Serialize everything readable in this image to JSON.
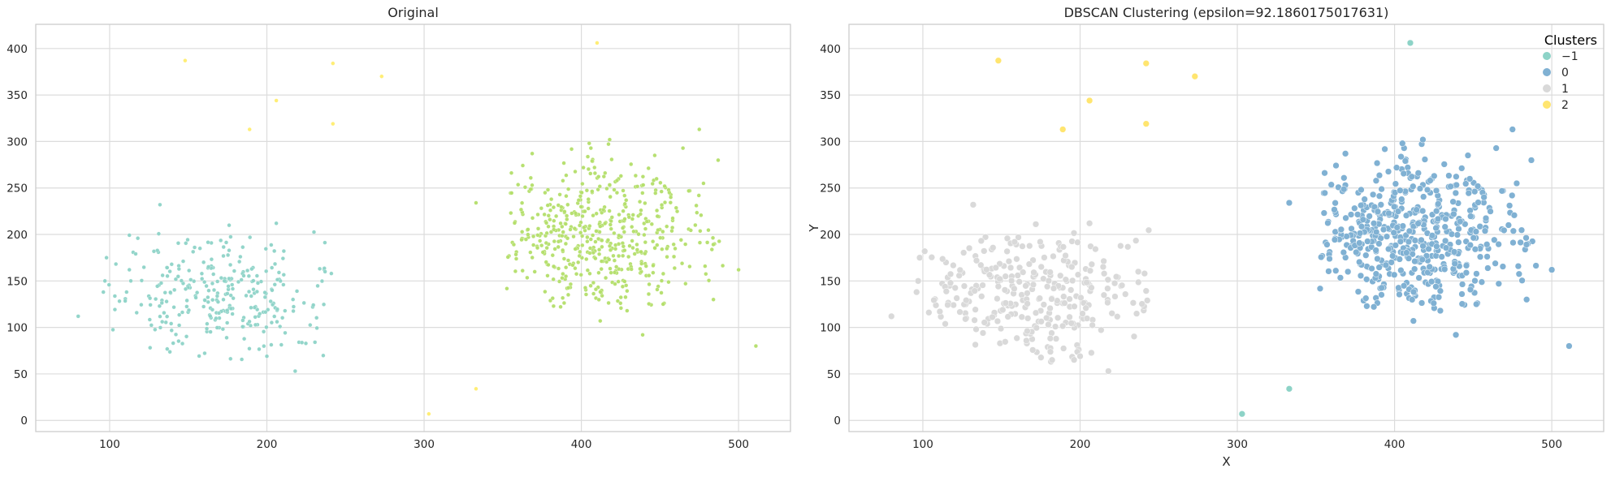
{
  "chart_data": [
    {
      "type": "scatter",
      "title": "Original",
      "xlabel": "",
      "ylabel": "",
      "xlim": [
        53,
        533
      ],
      "ylim": [
        -12,
        426
      ],
      "xticks": [
        100,
        200,
        300,
        400,
        500
      ],
      "yticks": [
        0,
        50,
        100,
        150,
        200,
        250,
        300,
        350,
        400
      ],
      "grid": true,
      "legend": null,
      "series": [
        {
          "color": "#8dd3c7",
          "blob": {
            "cx": 170,
            "cy": 135,
            "sx": 40,
            "sy": 33,
            "xmin": 98,
            "xmax": 245,
            "ymin": 63,
            "ymax": 212,
            "n": 290
          },
          "points": [
            [
              80,
              112
            ],
            [
              98,
              175
            ],
            [
              132,
              232
            ],
            [
              218,
              53
            ],
            [
              200,
              69
            ],
            [
              97,
              150
            ],
            [
              96,
              138
            ],
            [
              237,
              160
            ],
            [
              241,
              158
            ],
            [
              206,
              212
            ]
          ]
        },
        {
          "color": "#b3de69",
          "blob": {
            "cx": 412,
            "cy": 200,
            "sx": 36,
            "sy": 40,
            "xmin": 352,
            "xmax": 490,
            "ymin": 115,
            "ymax": 300,
            "n": 500
          },
          "points": [
            [
              500,
              162
            ],
            [
              511,
              80
            ],
            [
              484,
              130
            ],
            [
              439,
              92
            ],
            [
              452,
              125
            ],
            [
              412,
              107
            ],
            [
              475,
              313
            ],
            [
              418,
              302
            ],
            [
              333,
              234
            ],
            [
              405,
              298
            ]
          ]
        },
        {
          "color": "#ffed6f",
          "points": [
            [
              148,
              387
            ],
            [
              242,
              384
            ],
            [
              273,
              370
            ],
            [
              206,
              344
            ],
            [
              189,
              313
            ],
            [
              242,
              319
            ],
            [
              410,
              406
            ],
            [
              333,
              34
            ],
            [
              303,
              7
            ]
          ]
        }
      ]
    },
    {
      "type": "scatter",
      "title": "DBSCAN Clustering (epsilon=92.1860175017631)",
      "xlabel": "X",
      "ylabel": "Y",
      "xlim": [
        53,
        533
      ],
      "ylim": [
        -12,
        426
      ],
      "xticks": [
        100,
        200,
        300,
        400,
        500
      ],
      "yticks": [
        0,
        50,
        100,
        150,
        200,
        250,
        300,
        350,
        400
      ],
      "grid": true,
      "legend": {
        "title": "Clusters",
        "placement": "top-right"
      },
      "series": [
        {
          "name": "−1",
          "color": "#8dd3c7",
          "points": [
            [
              410,
              406
            ],
            [
              333,
              34
            ],
            [
              303,
              7
            ]
          ]
        },
        {
          "name": "0",
          "color": "#80b1d3",
          "blob": {
            "cx": 412,
            "cy": 200,
            "sx": 36,
            "sy": 40,
            "xmin": 352,
            "xmax": 490,
            "ymin": 115,
            "ymax": 300,
            "n": 500
          },
          "points": [
            [
              500,
              162
            ],
            [
              511,
              80
            ],
            [
              484,
              130
            ],
            [
              439,
              92
            ],
            [
              452,
              125
            ],
            [
              412,
              107
            ],
            [
              475,
              313
            ],
            [
              418,
              302
            ],
            [
              333,
              234
            ],
            [
              405,
              298
            ]
          ]
        },
        {
          "name": "1",
          "color": "#d9d9d9",
          "blob": {
            "cx": 170,
            "cy": 135,
            "sx": 40,
            "sy": 33,
            "xmin": 98,
            "xmax": 245,
            "ymin": 63,
            "ymax": 212,
            "n": 290
          },
          "points": [
            [
              80,
              112
            ],
            [
              98,
              175
            ],
            [
              132,
              232
            ],
            [
              218,
              53
            ],
            [
              200,
              69
            ],
            [
              97,
              150
            ],
            [
              96,
              138
            ],
            [
              237,
              160
            ],
            [
              241,
              158
            ],
            [
              206,
              212
            ]
          ]
        },
        {
          "name": "2",
          "color": "#ffe56f",
          "points": [
            [
              148,
              387
            ],
            [
              242,
              384
            ],
            [
              273,
              370
            ],
            [
              206,
              344
            ],
            [
              189,
              313
            ],
            [
              242,
              319
            ]
          ]
        }
      ]
    }
  ]
}
